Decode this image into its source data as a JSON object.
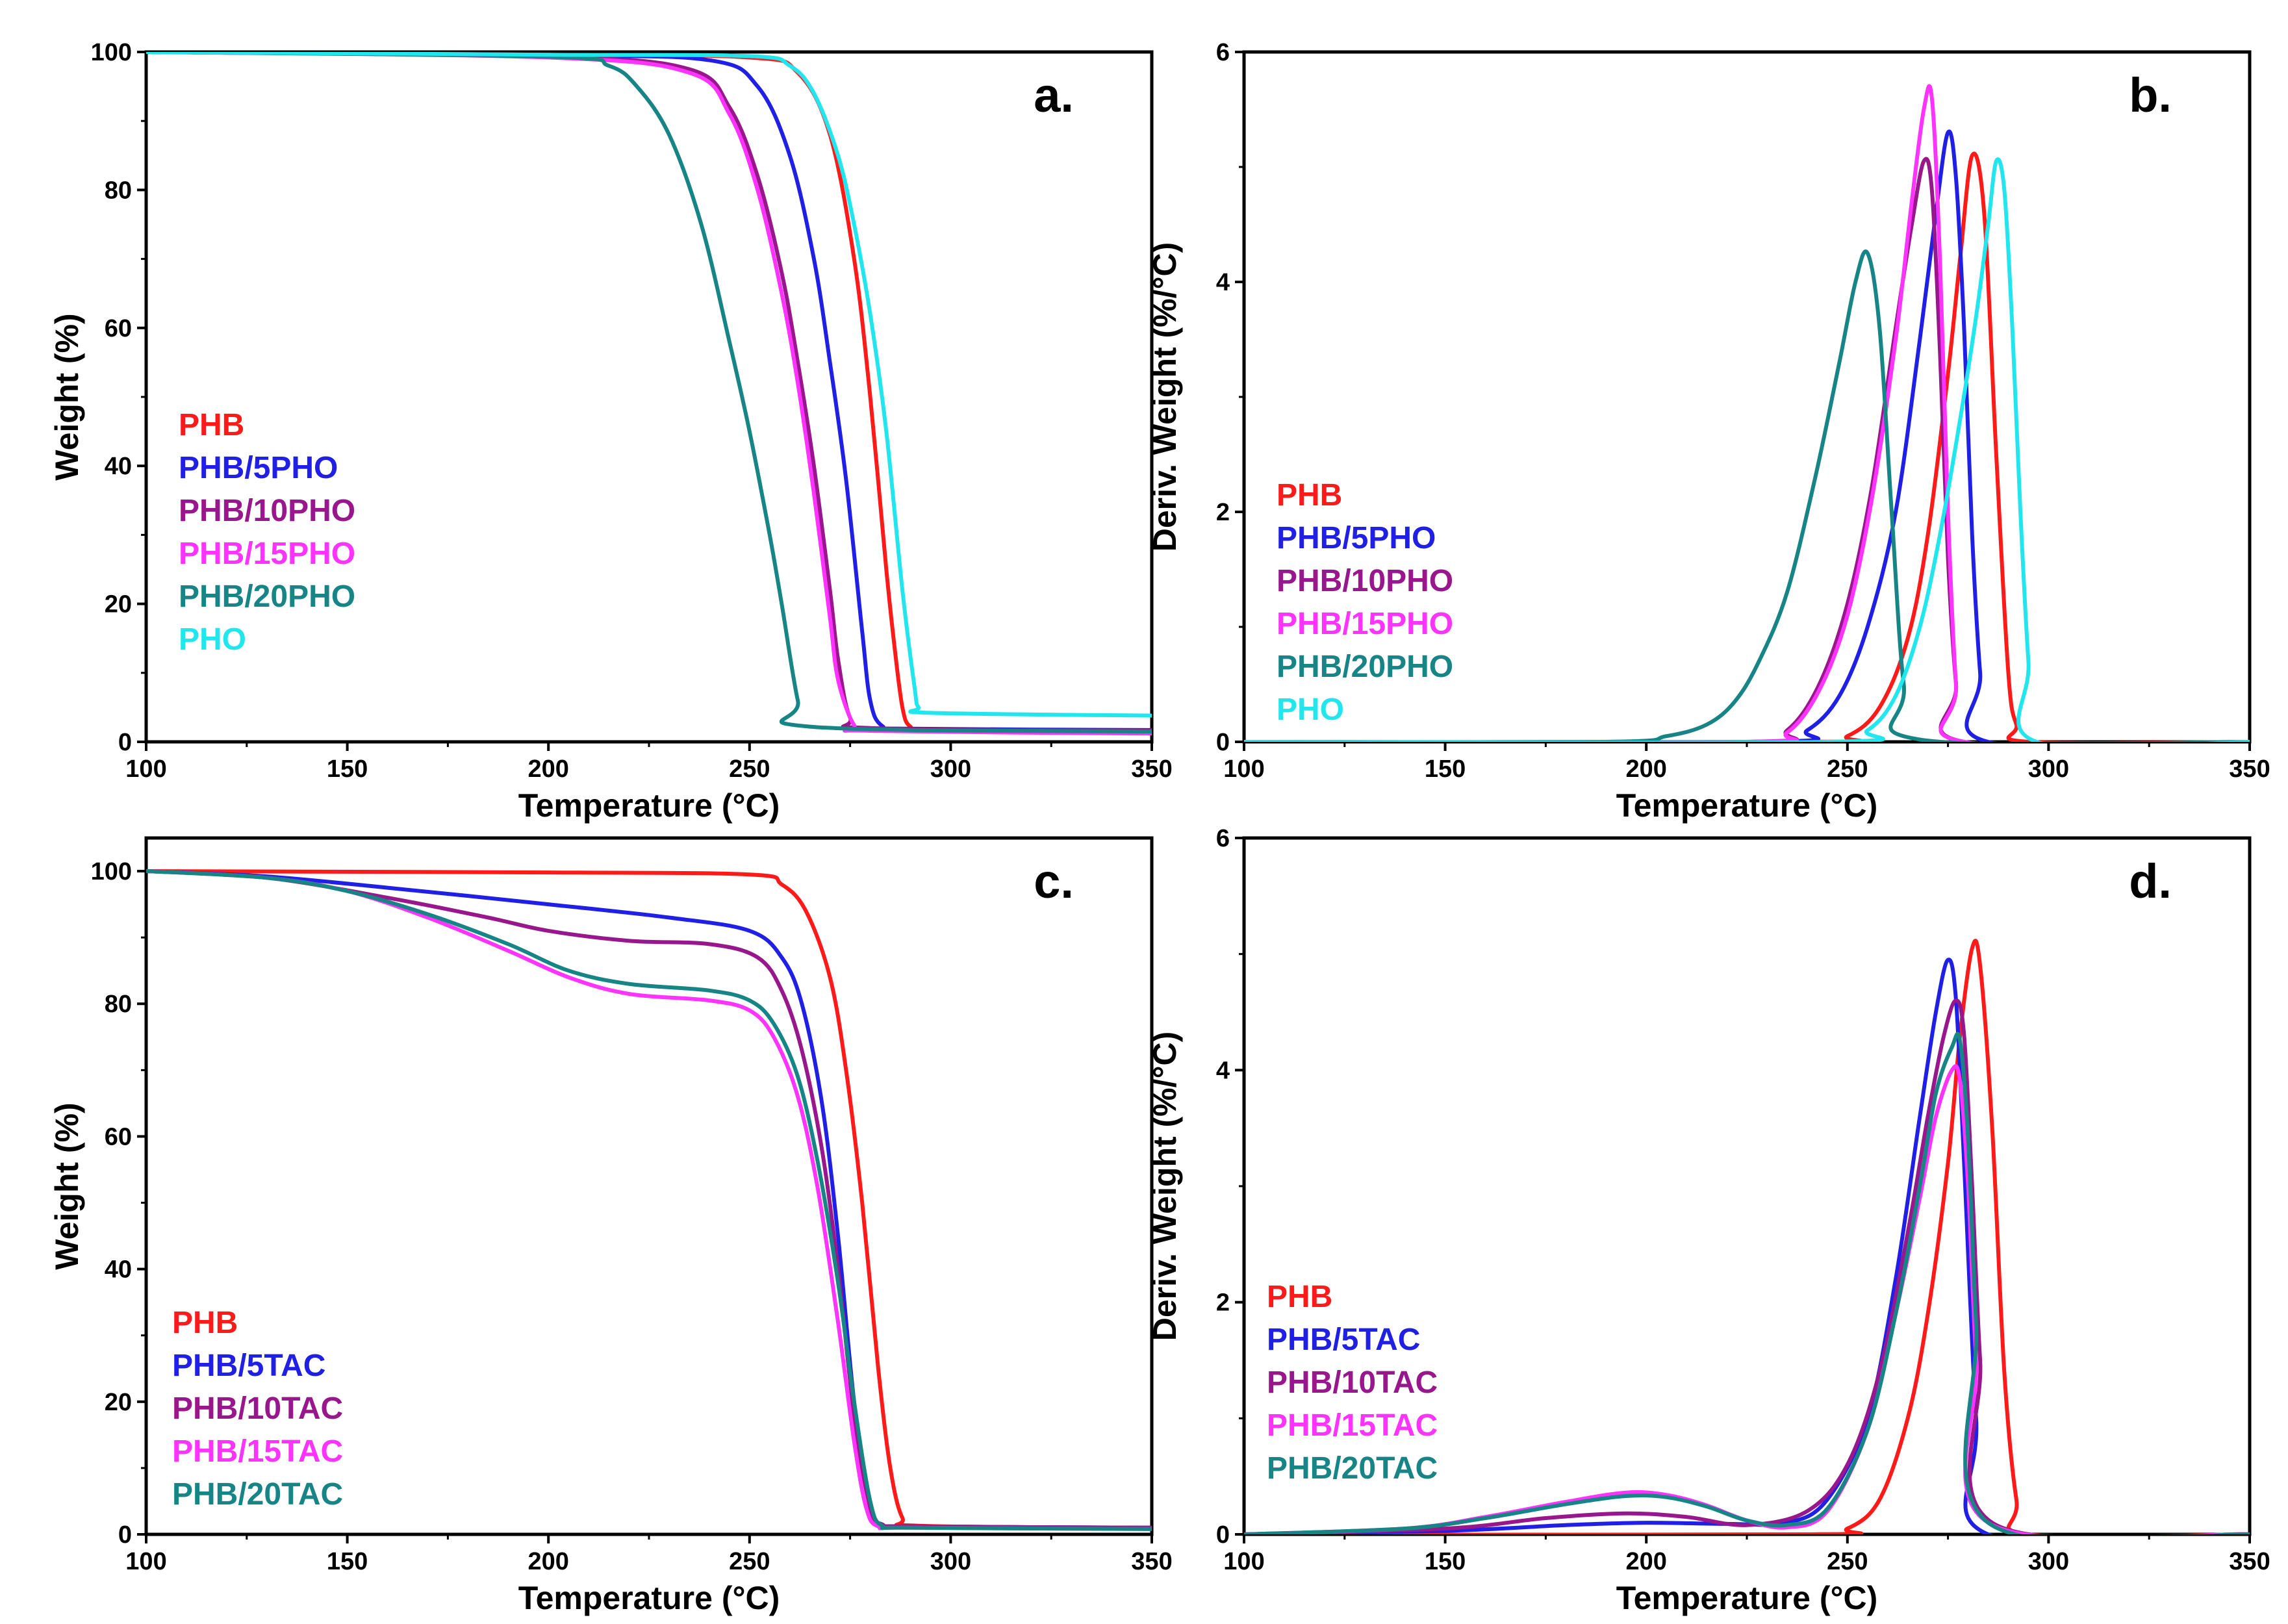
{
  "colors": {
    "red": "#ff1a1a",
    "blue": "#1f1fe6",
    "purple": "#99178c",
    "magenta": "#ff33ff",
    "teal": "#178585",
    "cyan": "#22e6ee"
  },
  "chart_data": [
    {
      "type": "line",
      "panel": "a.",
      "xlabel": "Temperature (°C)",
      "ylabel": "Weight (%)",
      "xlim": [
        100,
        350
      ],
      "ylim": [
        0,
        100
      ],
      "xticks": [
        100,
        150,
        200,
        250,
        300,
        350
      ],
      "yticks": [
        0,
        20,
        40,
        60,
        80,
        100
      ],
      "legend_position": "left",
      "series": [
        {
          "name": "PHB",
          "color": "#ff1a1a",
          "x": [
            100,
            200,
            250,
            262,
            270,
            276,
            280,
            284,
            286,
            288,
            290,
            295,
            350
          ],
          "y": [
            100,
            99.6,
            99.2,
            97,
            88,
            70,
            50,
            25,
            14,
            5,
            2.2,
            1.8,
            1.6
          ]
        },
        {
          "name": "PHB/5PHO",
          "color": "#1f1fe6",
          "x": [
            100,
            200,
            240,
            252,
            260,
            266,
            270,
            274,
            278,
            280,
            283,
            290,
            350
          ],
          "y": [
            100,
            99.5,
            98.8,
            95,
            85,
            70,
            55,
            38,
            16,
            6,
            2.3,
            1.9,
            1.7
          ]
        },
        {
          "name": "PHB/10PHO",
          "color": "#99178c",
          "x": [
            100,
            200,
            235,
            245,
            252,
            258,
            262,
            266,
            270,
            272,
            275,
            280,
            350
          ],
          "y": [
            100,
            99.3,
            97.5,
            92,
            82,
            68,
            55,
            40,
            22,
            12,
            3.5,
            2,
            1.6
          ]
        },
        {
          "name": "PHB/15PHO",
          "color": "#ff33ff",
          "x": [
            100,
            200,
            235,
            245,
            252,
            258,
            262,
            266,
            270,
            272,
            276,
            280,
            350
          ],
          "y": [
            100,
            99.2,
            97,
            91,
            80,
            65,
            52,
            36,
            18,
            9,
            2.4,
            1.6,
            1.2
          ]
        },
        {
          "name": "PHB/20PHO",
          "color": "#178585",
          "x": [
            100,
            200,
            215,
            222,
            230,
            238,
            245,
            250,
            255,
            258,
            262,
            265,
            350
          ],
          "y": [
            100,
            99.3,
            98,
            95,
            88,
            75,
            58,
            45,
            30,
            20,
            6,
            2.2,
            1.5
          ]
        },
        {
          "name": "PHO",
          "color": "#22e6ee",
          "x": [
            100,
            200,
            250,
            260,
            266,
            272,
            276,
            280,
            284,
            288,
            291,
            292,
            295,
            350
          ],
          "y": [
            100,
            99.6,
            99.4,
            98,
            94,
            85,
            75,
            62,
            45,
            22,
            8,
            5,
            4.2,
            3.8
          ]
        }
      ]
    },
    {
      "type": "line",
      "panel": "b.",
      "xlabel": "Temperature (°C)",
      "ylabel": "Deriv. Weight (%/°C)",
      "xlim": [
        100,
        350
      ],
      "ylim": [
        0,
        6
      ],
      "xticks": [
        100,
        150,
        200,
        250,
        300,
        350
      ],
      "yticks": [
        0,
        2,
        4,
        6
      ],
      "legend_position": "left",
      "series": [
        {
          "name": "PHB",
          "color": "#ff1a1a",
          "x": [
            100,
            240,
            250,
            258,
            265,
            270,
            275,
            278,
            281,
            284,
            287,
            290,
            292,
            295,
            350
          ],
          "y": [
            0,
            0,
            0.05,
            0.3,
            0.9,
            1.8,
            3.2,
            4.2,
            5.1,
            4.6,
            2.5,
            0.6,
            0.15,
            0,
            0
          ]
        },
        {
          "name": "PHB/5PHO",
          "color": "#1f1fe6",
          "x": [
            100,
            230,
            240,
            248,
            255,
            262,
            268,
            272,
            275,
            277,
            279,
            281,
            283,
            285,
            350
          ],
          "y": [
            0,
            0,
            0.1,
            0.4,
            1.0,
            2.0,
            3.5,
            4.6,
            5.3,
            4.9,
            3.6,
            1.8,
            0.6,
            0,
            0
          ]
        },
        {
          "name": "PHB/10PHO",
          "color": "#99178c",
          "x": [
            100,
            225,
            235,
            243,
            250,
            256,
            262,
            266,
            269,
            271,
            273,
            275,
            277,
            279,
            350
          ],
          "y": [
            0,
            0,
            0.1,
            0.5,
            1.2,
            2.2,
            3.6,
            4.5,
            5.05,
            4.8,
            3.4,
            1.6,
            0.5,
            0,
            0
          ]
        },
        {
          "name": "PHB/15PHO",
          "color": "#ff33ff",
          "x": [
            100,
            225,
            235,
            243,
            250,
            256,
            262,
            266,
            269,
            271,
            273,
            275,
            277,
            279,
            350
          ],
          "y": [
            0,
            0,
            0.08,
            0.45,
            1.1,
            2.1,
            3.5,
            4.7,
            5.5,
            5.6,
            4.2,
            2.0,
            0.5,
            0,
            0
          ]
        },
        {
          "name": "PHB/20PHO",
          "color": "#178585",
          "x": [
            100,
            190,
            205,
            215,
            222,
            228,
            235,
            242,
            248,
            252,
            255,
            258,
            261,
            264,
            268,
            350
          ],
          "y": [
            0,
            0,
            0.05,
            0.15,
            0.35,
            0.7,
            1.3,
            2.3,
            3.3,
            4.0,
            4.25,
            3.6,
            2.0,
            0.5,
            0.02,
            0
          ]
        },
        {
          "name": "PHO",
          "color": "#22e6ee",
          "x": [
            100,
            245,
            255,
            262,
            268,
            273,
            278,
            282,
            285,
            287,
            289,
            291,
            293,
            295,
            297,
            350
          ],
          "y": [
            0,
            0,
            0.1,
            0.4,
            1.0,
            1.8,
            2.8,
            3.7,
            4.5,
            5.05,
            4.8,
            3.6,
            2.0,
            0.7,
            0,
            0
          ]
        }
      ]
    },
    {
      "type": "line",
      "panel": "c.",
      "xlabel": "Temperature (°C)",
      "ylabel": "Weight (%)",
      "xlim": [
        100,
        350
      ],
      "ylim": [
        0,
        105
      ],
      "xticks": [
        100,
        150,
        200,
        250,
        300,
        350
      ],
      "yticks": [
        0,
        20,
        40,
        60,
        80,
        100
      ],
      "legend_position": "bottom-left",
      "series": [
        {
          "name": "PHB",
          "color": "#ff1a1a",
          "x": [
            100,
            200,
            250,
            258,
            264,
            270,
            274,
            278,
            282,
            285,
            288,
            292,
            350
          ],
          "y": [
            100,
            99.8,
            99.5,
            98,
            94,
            84,
            70,
            50,
            25,
            10,
            2.5,
            1.3,
            1.0
          ]
        },
        {
          "name": "PHB/5TAC",
          "color": "#1f1fe6",
          "x": [
            100,
            130,
            160,
            200,
            230,
            250,
            258,
            263,
            268,
            272,
            276,
            280,
            283,
            290,
            350
          ],
          "y": [
            100,
            99.2,
            97.5,
            95,
            93,
            91,
            87,
            80,
            65,
            45,
            20,
            4,
            1.5,
            1.2,
            1.0
          ]
        },
        {
          "name": "PHB/10TAC",
          "color": "#99178c",
          "x": [
            100,
            130,
            160,
            185,
            200,
            220,
            240,
            252,
            258,
            263,
            268,
            272,
            276,
            280,
            283,
            290,
            350
          ],
          "y": [
            100,
            99,
            96,
            93,
            91,
            89.5,
            89,
            87,
            82,
            73,
            58,
            40,
            18,
            4,
            1.5,
            1.2,
            1.0
          ]
        },
        {
          "name": "PHB/15TAC",
          "color": "#ff33ff",
          "x": [
            100,
            130,
            150,
            170,
            190,
            205,
            220,
            240,
            250,
            256,
            262,
            267,
            272,
            276,
            279,
            282,
            290,
            350
          ],
          "y": [
            100,
            99,
            97,
            93,
            88,
            84,
            81.5,
            80.5,
            79,
            75,
            66,
            52,
            32,
            14,
            4,
            1.2,
            1.0,
            0.8
          ]
        },
        {
          "name": "PHB/20TAC",
          "color": "#178585",
          "x": [
            100,
            130,
            150,
            170,
            190,
            205,
            220,
            240,
            250,
            256,
            262,
            267,
            272,
            276,
            280,
            283,
            290,
            350
          ],
          "y": [
            100,
            99,
            97,
            93.5,
            89,
            85,
            83,
            82,
            80.5,
            77,
            69,
            56,
            38,
            20,
            5,
            1.3,
            1.0,
            0.8
          ]
        }
      ]
    },
    {
      "type": "line",
      "panel": "d.",
      "xlabel": "Temperature (°C)",
      "ylabel": "Deriv. Weight (%/°C)",
      "xlim": [
        100,
        350
      ],
      "ylim": [
        0,
        6
      ],
      "xticks": [
        100,
        150,
        200,
        250,
        300,
        350
      ],
      "yticks": [
        0,
        2,
        4,
        6
      ],
      "legend_position": "bottom-left",
      "series": [
        {
          "name": "PHB",
          "color": "#ff1a1a",
          "x": [
            100,
            240,
            250,
            258,
            265,
            270,
            275,
            278,
            281,
            283,
            286,
            289,
            292,
            295,
            350
          ],
          "y": [
            0,
            0,
            0.05,
            0.3,
            1.0,
            1.9,
            3.2,
            4.3,
            5.05,
            4.9,
            3.5,
            1.4,
            0.3,
            0,
            0
          ]
        },
        {
          "name": "PHB/5TAC",
          "color": "#1f1fe6",
          "x": [
            100,
            150,
            180,
            200,
            220,
            235,
            245,
            255,
            262,
            268,
            272,
            275,
            277,
            279,
            282,
            285,
            350
          ],
          "y": [
            0,
            0.03,
            0.08,
            0.1,
            0.09,
            0.1,
            0.3,
            1.0,
            2.2,
            3.6,
            4.5,
            4.95,
            4.6,
            3.2,
            1.0,
            0,
            0
          ]
        },
        {
          "name": "PHB/10TAC",
          "color": "#99178c",
          "x": [
            100,
            150,
            175,
            195,
            210,
            225,
            240,
            250,
            258,
            265,
            270,
            274,
            277,
            279,
            281,
            283,
            286,
            350
          ],
          "y": [
            0,
            0.05,
            0.14,
            0.18,
            0.15,
            0.08,
            0.2,
            0.6,
            1.4,
            2.6,
            3.6,
            4.3,
            4.6,
            4.3,
            3.0,
            1.5,
            0.1,
            0
          ]
        },
        {
          "name": "PHB/15TAC",
          "color": "#ff33ff",
          "x": [
            100,
            140,
            160,
            180,
            195,
            205,
            215,
            225,
            235,
            245,
            255,
            262,
            268,
            272,
            276,
            278,
            280,
            282,
            285,
            350
          ],
          "y": [
            0,
            0.05,
            0.15,
            0.28,
            0.36,
            0.34,
            0.25,
            0.12,
            0.06,
            0.2,
            0.9,
            1.9,
            2.9,
            3.6,
            4.0,
            3.9,
            3.0,
            1.5,
            0.1,
            0
          ]
        },
        {
          "name": "PHB/20TAC",
          "color": "#178585",
          "x": [
            100,
            140,
            160,
            180,
            195,
            205,
            215,
            225,
            235,
            245,
            255,
            262,
            268,
            272,
            276,
            278,
            280,
            282,
            285,
            350
          ],
          "y": [
            0,
            0.05,
            0.14,
            0.26,
            0.33,
            0.32,
            0.24,
            0.12,
            0.08,
            0.22,
            0.9,
            1.9,
            3.0,
            3.8,
            4.2,
            4.25,
            3.4,
            1.8,
            0.1,
            0
          ]
        }
      ]
    }
  ]
}
